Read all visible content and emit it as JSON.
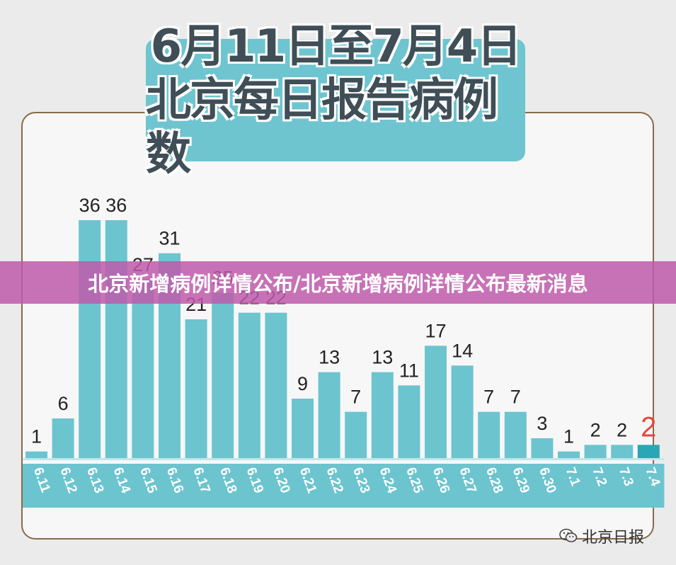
{
  "chart_data": {
    "type": "bar",
    "title": "6月11日至7月4日\n北京每日报告病例数",
    "title_lines": [
      "6月11日至7月4日",
      "北京每日报告病例数"
    ],
    "categories": [
      "6.11",
      "6.12",
      "6.13",
      "6.14",
      "6.15",
      "6.16",
      "6.17",
      "6.18",
      "6.19",
      "6.20",
      "6.21",
      "6.22",
      "6.23",
      "6.24",
      "6.25",
      "6.26",
      "6.27",
      "6.28",
      "6.29",
      "6.30",
      "7.1",
      "7.2",
      "7.3",
      "7.4"
    ],
    "values": [
      1,
      6,
      36,
      36,
      27,
      31,
      21,
      25,
      22,
      22,
      9,
      13,
      7,
      13,
      11,
      17,
      14,
      7,
      7,
      3,
      1,
      2,
      2,
      2
    ],
    "xlabel": "",
    "ylabel": "",
    "ylim": [
      0,
      40
    ],
    "grid": false,
    "legend": "none",
    "colors": {
      "bar": "#6cc4cf",
      "highlight_bar": "#2ba6b4",
      "highlight_label": "#e8463c",
      "axis_band": "#6cc4cf",
      "axis_text": "#ffffff"
    }
  },
  "overlay": {
    "banner_text": "北京新增病例详情公布/北京新增病例详情公布最新消息",
    "banner_color": "#be5aaa"
  },
  "watermark": {
    "text": "北京日报",
    "icon": "wechat-icon"
  }
}
